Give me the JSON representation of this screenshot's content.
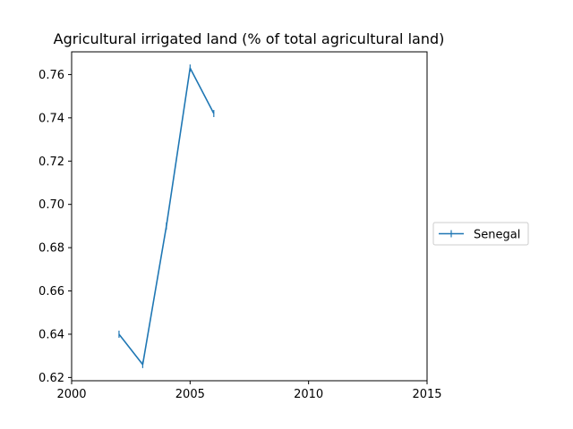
{
  "chart_data": {
    "type": "line",
    "title": "Agricultural irrigated land (% of total agricultural land)",
    "xlabel": "",
    "ylabel": "",
    "xlim": [
      2000,
      2015
    ],
    "ylim": [
      0.6185,
      0.7705
    ],
    "x_ticks": [
      2000,
      2005,
      2010,
      2015
    ],
    "x_tick_labels": [
      "2000",
      "2005",
      "2010",
      "2015"
    ],
    "y_ticks": [
      0.62,
      0.64,
      0.66,
      0.68,
      0.7,
      0.72,
      0.74,
      0.76
    ],
    "y_tick_labels": [
      "0.62",
      "0.64",
      "0.66",
      "0.68",
      "0.70",
      "0.72",
      "0.74",
      "0.76"
    ],
    "grid": false,
    "legend_position": "outside-right",
    "series": [
      {
        "name": "Senegal",
        "color": "#1f77b4",
        "marker": "vertical-line",
        "x": [
          2002,
          2003,
          2004,
          2005,
          2006
        ],
        "y": [
          0.64,
          0.626,
          0.69,
          0.763,
          0.742
        ]
      }
    ]
  }
}
